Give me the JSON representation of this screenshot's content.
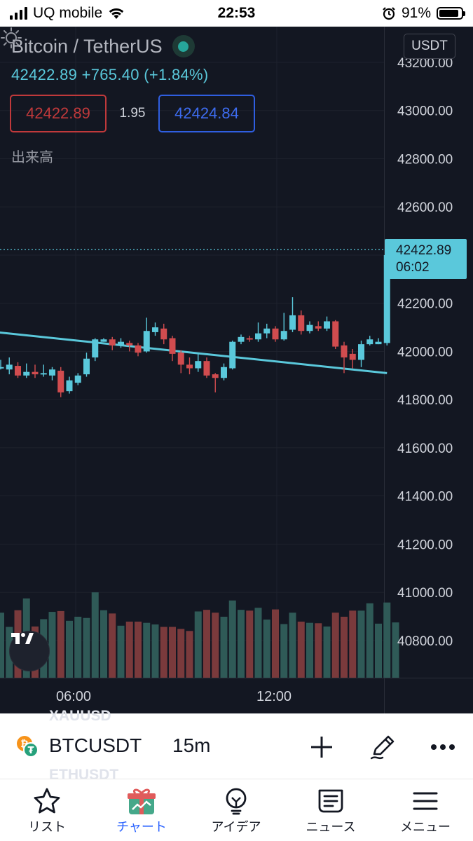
{
  "status_bar": {
    "carrier": "UQ mobile",
    "time": "22:53",
    "battery": "91%",
    "battery_level": 0.91
  },
  "header": {
    "pair": "Bitcoin / TetherUS",
    "last_price": "42422.89",
    "change": "+765.40",
    "change_pct": "(+1.84%)",
    "bid": "42422.89",
    "spread": "1.95",
    "ask": "42424.84",
    "volume_label": "出来高",
    "currency": "USDT"
  },
  "price_tag": {
    "price": "42422.89",
    "countdown": "06:02"
  },
  "colors": {
    "up": "#5ac8db",
    "down": "#d14c4f",
    "volume_up": "#2f5a57",
    "volume_down": "#7a3a3c",
    "trendline": "#5ac8db",
    "background": "#131722"
  },
  "chart_data": {
    "type": "candlestick",
    "y_axis": {
      "ticks": [
        43200,
        43000,
        42800,
        42600,
        42400,
        42200,
        42000,
        41800,
        41600,
        41400,
        41200,
        41000,
        40800
      ]
    },
    "x_axis": {
      "ticks": [
        "06:00",
        "12:00"
      ]
    },
    "last_price": 42422.89,
    "trendline": {
      "from": {
        "bar": -0.5,
        "price": 42080
      },
      "to": {
        "bar": 45,
        "price": 41910
      }
    },
    "candles": [
      [
        41935,
        41935,
        41925,
        41965
      ],
      [
        41925,
        41945,
        41905,
        41975
      ],
      [
        41940,
        41900,
        41890,
        41955
      ],
      [
        41900,
        41915,
        41890,
        41950
      ],
      [
        41915,
        41905,
        41890,
        41945
      ],
      [
        41905,
        41910,
        41895,
        41945
      ],
      [
        41900,
        41925,
        41880,
        41935
      ],
      [
        41920,
        41830,
        41810,
        41935
      ],
      [
        41835,
        41880,
        41825,
        41895
      ],
      [
        41870,
        41900,
        41860,
        41910
      ],
      [
        41905,
        41970,
        41895,
        41995
      ],
      [
        41975,
        42050,
        41960,
        42055
      ],
      [
        42040,
        42050,
        42040,
        42055
      ],
      [
        42050,
        42025,
        42005,
        42060
      ],
      [
        42025,
        42040,
        42015,
        42055
      ],
      [
        42035,
        42025,
        42000,
        42045
      ],
      [
        42025,
        41995,
        41980,
        42035
      ],
      [
        42000,
        42085,
        41995,
        42140
      ],
      [
        42080,
        42100,
        42065,
        42120
      ],
      [
        42095,
        42050,
        42030,
        42115
      ],
      [
        42055,
        41990,
        41960,
        42065
      ],
      [
        41995,
        41945,
        41910,
        42005
      ],
      [
        41945,
        41930,
        41905,
        41975
      ],
      [
        41930,
        41960,
        41915,
        41990
      ],
      [
        41960,
        41900,
        41890,
        41975
      ],
      [
        41905,
        41890,
        41830,
        41910
      ],
      [
        41890,
        41935,
        41880,
        41950
      ],
      [
        41930,
        42040,
        41925,
        42045
      ],
      [
        42040,
        42060,
        42030,
        42070
      ],
      [
        42055,
        42050,
        42040,
        42065
      ],
      [
        42050,
        42075,
        42040,
        42120
      ],
      [
        42075,
        42095,
        42055,
        42115
      ],
      [
        42095,
        42050,
        42040,
        42105
      ],
      [
        42050,
        42085,
        42045,
        42160
      ],
      [
        42090,
        42150,
        42080,
        42225
      ],
      [
        42150,
        42085,
        42070,
        42170
      ],
      [
        42085,
        42110,
        42075,
        42125
      ],
      [
        42105,
        42095,
        42085,
        42125
      ],
      [
        42095,
        42125,
        42085,
        42145
      ],
      [
        42125,
        42020,
        42010,
        42130
      ],
      [
        42025,
        41975,
        41910,
        42040
      ],
      [
        41990,
        41965,
        41930,
        42010
      ],
      [
        41965,
        42030,
        41935,
        42045
      ],
      [
        42030,
        42050,
        42025,
        42065
      ],
      [
        42030,
        42040,
        42030,
        42055
      ],
      [
        42035,
        42400,
        42025,
        42405
      ],
      [
        42400,
        42423,
        42380,
        42450
      ]
    ],
    "volumes": [
      160,
      125,
      166,
      195,
      126,
      144,
      162,
      164,
      140,
      150,
      147,
      210,
      166,
      158,
      128,
      138,
      138,
      135,
      131,
      125,
      125,
      120,
      115,
      163,
      167,
      160,
      150,
      190,
      167,
      165,
      172,
      143,
      168,
      132,
      160,
      138,
      135,
      134,
      126,
      160,
      150,
      165,
      165,
      183,
      133,
      185,
      136
    ]
  },
  "toolbar": {
    "ghost_above": "XAUUSD",
    "symbol": "BTCUSDT",
    "interval": "15m",
    "ghost_below": "ETHUSDT"
  },
  "tabs": [
    {
      "label": "リスト",
      "icon": "star-icon"
    },
    {
      "label": "チャート",
      "icon": "gift-chart-icon",
      "active": true
    },
    {
      "label": "アイデア",
      "icon": "lightbulb-icon"
    },
    {
      "label": "ニュース",
      "icon": "news-icon"
    },
    {
      "label": "メニュー",
      "icon": "hamburger-icon"
    }
  ]
}
